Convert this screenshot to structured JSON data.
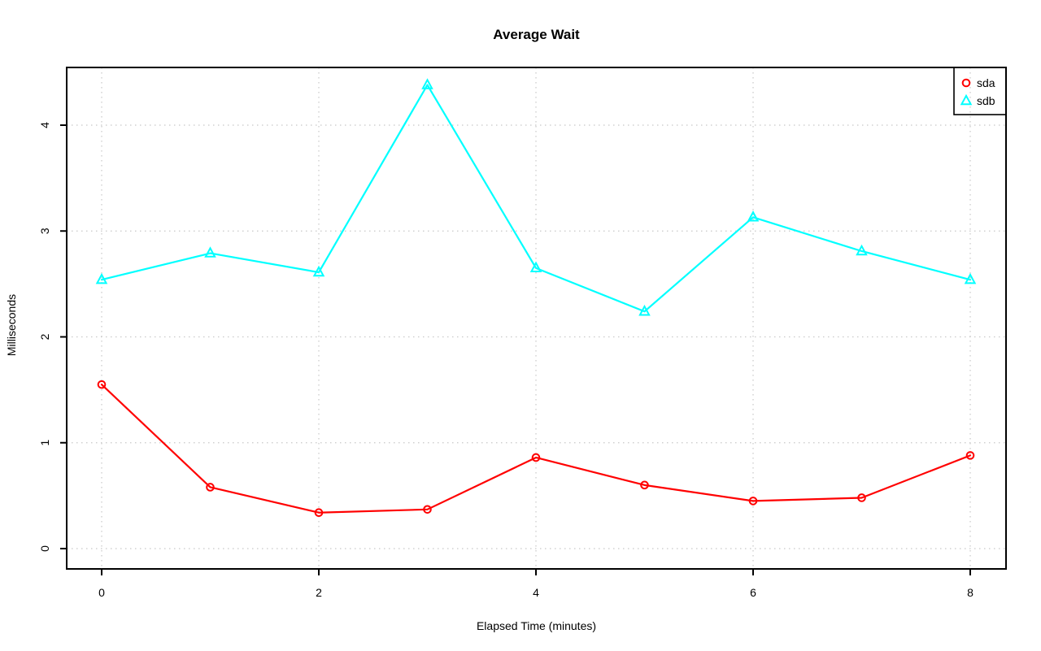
{
  "chart_data": {
    "type": "line",
    "title": "Average Wait",
    "xlabel": "Elapsed Time (minutes)",
    "ylabel": "Milliseconds",
    "x": [
      0,
      1,
      2,
      3,
      4,
      5,
      6,
      7,
      8
    ],
    "series": [
      {
        "name": "sda",
        "color": "#ff0000",
        "marker": "circle",
        "values": [
          1.55,
          0.58,
          0.34,
          0.37,
          0.86,
          0.6,
          0.45,
          0.48,
          0.88
        ]
      },
      {
        "name": "sdb",
        "color": "#00ffff",
        "marker": "triangle",
        "values": [
          2.54,
          2.79,
          2.61,
          4.38,
          2.65,
          2.24,
          3.13,
          2.81,
          2.54
        ]
      }
    ],
    "xticks": [
      0,
      2,
      4,
      6,
      8
    ],
    "yticks": [
      0,
      1,
      2,
      3,
      4
    ],
    "xlim": [
      -0.32,
      8.33
    ],
    "ylim": [
      -0.18,
      4.55
    ],
    "grid": true,
    "grid_style": "dotted",
    "grid_color": "#c8c8c8",
    "frame_color": "#000000",
    "background": "#ffffff",
    "legend": {
      "position": "topright",
      "entries": [
        {
          "label": "sda",
          "marker": "circle",
          "color": "#ff0000"
        },
        {
          "label": "sdb",
          "marker": "triangle",
          "color": "#00ffff"
        }
      ]
    }
  }
}
